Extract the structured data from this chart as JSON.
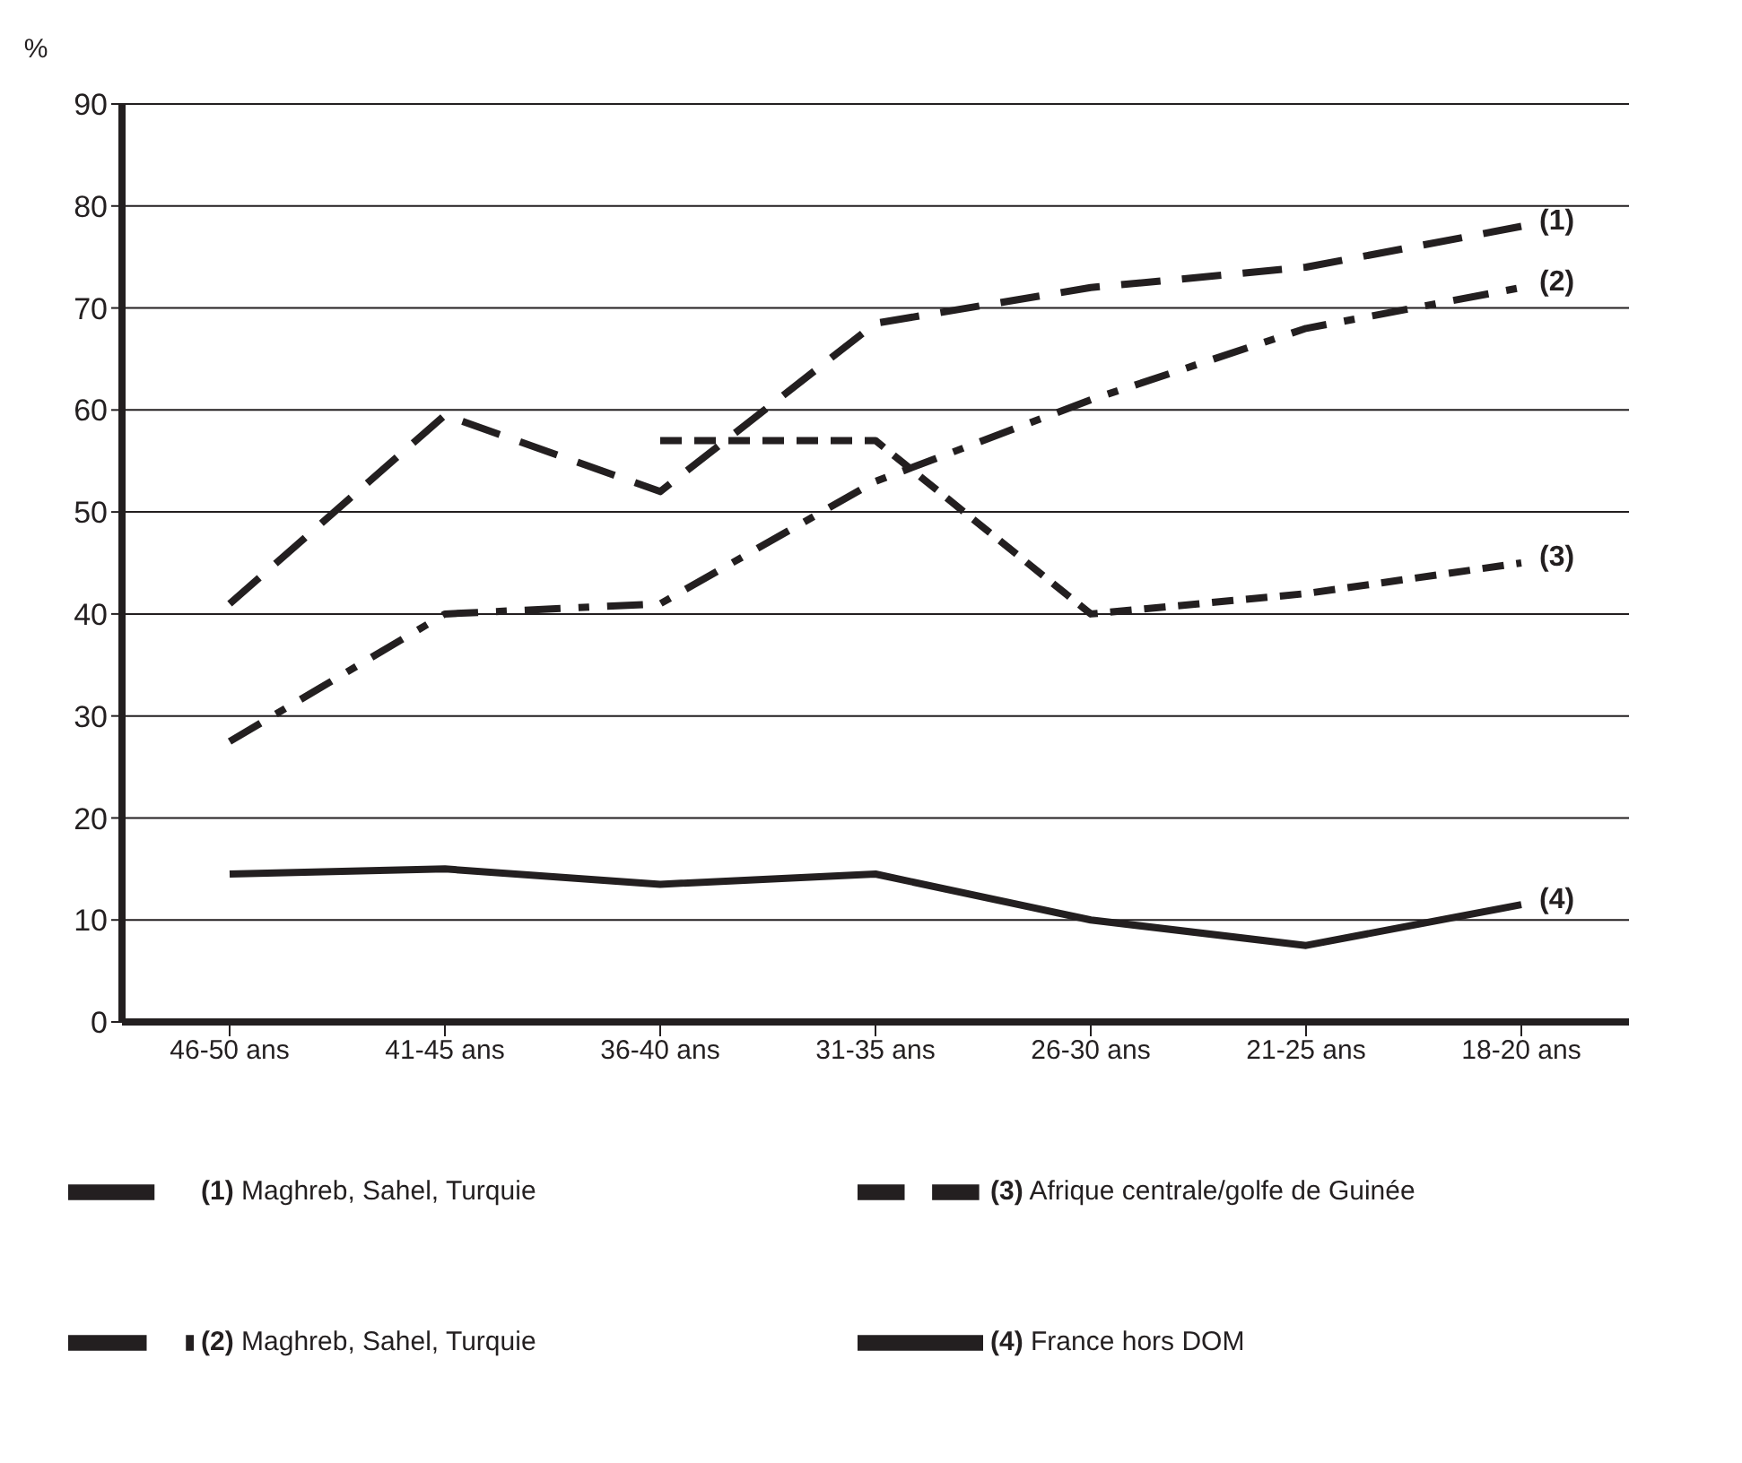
{
  "chart_data": {
    "type": "line",
    "ylabel": "%",
    "categories": [
      "46-50 ans",
      "41-45 ans",
      "36-40 ans",
      "31-35 ans",
      "26-30 ans",
      "21-25 ans",
      "18-20 ans"
    ],
    "series": [
      {
        "name": "(1) Maghreb, Sahel, Turquie",
        "color": "#231f20",
        "line_style": "dashed",
        "values": [
          41,
          59.5,
          52,
          68.5,
          72,
          74,
          78
        ]
      },
      {
        "name": "(2) Maghreb, Sahel, Turquie",
        "color": "#231f20",
        "line_style": "dashdot",
        "values": [
          27.5,
          40,
          41,
          53,
          61,
          68,
          72
        ]
      },
      {
        "name": "(3) Afrique centrale/golfe de Guinée",
        "color": "#231f20",
        "line_style": "dotted",
        "values": [
          null,
          null,
          57,
          57,
          40,
          42,
          45
        ]
      },
      {
        "name": "(4) France hors DOM",
        "color": "#231f20",
        "line_style": "solid",
        "values": [
          14.5,
          15,
          13.5,
          14.5,
          10,
          7.5,
          11.5
        ]
      }
    ],
    "annotations": [
      {
        "text": "(1)",
        "x": "18-20 ans",
        "y": 78
      },
      {
        "text": "(2)",
        "x": "18-20 ans",
        "y": 72
      },
      {
        "text": "(3)",
        "x": "18-20 ans",
        "y": 45
      },
      {
        "text": "(4)",
        "x": "18-20 ans",
        "y": 11.5
      }
    ],
    "ylim": [
      0,
      90
    ],
    "yticks": [
      0,
      10,
      20,
      30,
      40,
      50,
      60,
      70,
      80,
      90
    ],
    "grid": "y",
    "legend": "bottom",
    "marker": "none"
  }
}
